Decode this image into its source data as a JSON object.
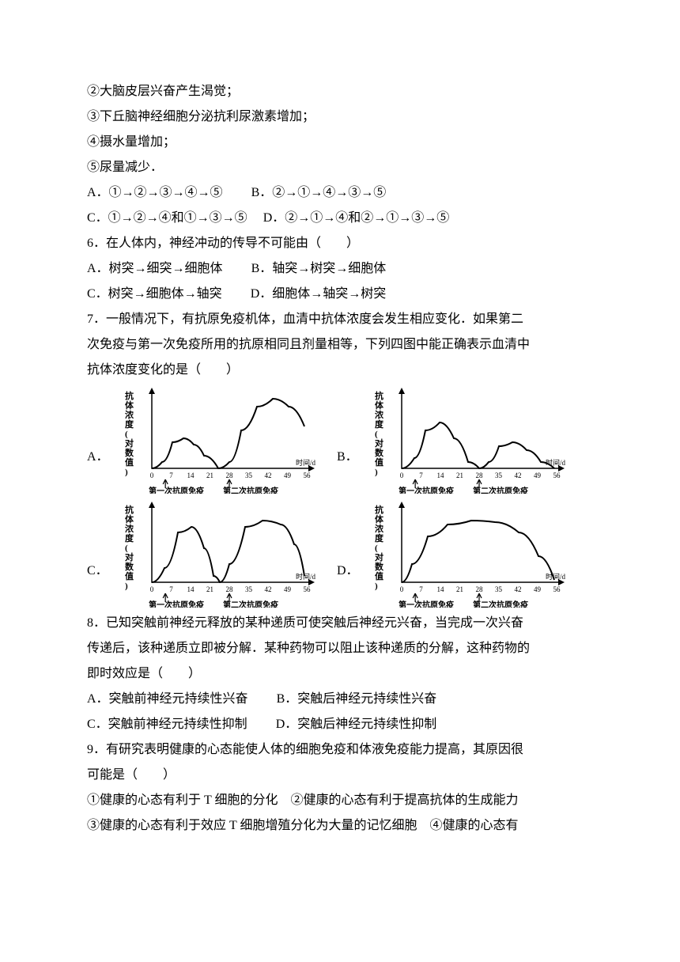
{
  "q_context": {
    "l1": "②大脑皮层兴奋产生渴觉；",
    "l2": "③下丘脑神经细胞分泌抗利尿激素增加；",
    "l3": "④摄水量增加；",
    "l4": "⑤尿量减少．",
    "optA": "A．①→②→③→④→⑤",
    "optB": "B．②→①→④→③→⑤",
    "optC": "C．①→②→④和①→③→⑤",
    "optD": "D．②→①→④和②→①→③→⑤"
  },
  "q6": {
    "stem": "6．在人体内，神经冲动的传导不可能由（　　）",
    "optA": "A．树突→细突→细胞体",
    "optB": "B．轴突→树突→细胞体",
    "optC": "C．树突→细胞体→轴突",
    "optD": "D．细胞体→轴突→树突"
  },
  "q7": {
    "stem1": "7．一般情况下，有抗原免疫机体，血清中抗体浓度会发生相应变化．如果第二",
    "stem2": "次免疫与第一次免疫所用的抗原相同且剂量相等，下列四图中能正确表示血清中",
    "stem3": "抗体浓度变化的是（　　）",
    "axis_y": "抗体浓度(对数值)",
    "axis_x": "时间/d",
    "ticks": [
      "0",
      "7",
      "14",
      "21",
      "28",
      "35",
      "42",
      "49",
      "56"
    ],
    "annot1": "第一次抗原免疫",
    "annot2": "第二次抗原免疫",
    "optA": "A．",
    "optB": "B．",
    "optC": "C．",
    "optD": "D．",
    "chart_colors": {
      "line": "#000000",
      "bg": "#ffffff"
    },
    "curves": {
      "A": [
        [
          42,
          108
        ],
        [
          55,
          100
        ],
        [
          68,
          75
        ],
        [
          82,
          70
        ],
        [
          95,
          78
        ],
        [
          108,
          92
        ],
        [
          126,
          108
        ],
        [
          140,
          100
        ],
        [
          155,
          60
        ],
        [
          175,
          30
        ],
        [
          195,
          20
        ],
        [
          215,
          30
        ],
        [
          235,
          55
        ]
      ],
      "B": [
        [
          42,
          108
        ],
        [
          58,
          95
        ],
        [
          72,
          60
        ],
        [
          90,
          50
        ],
        [
          108,
          70
        ],
        [
          126,
          100
        ],
        [
          140,
          108
        ],
        [
          152,
          100
        ],
        [
          165,
          80
        ],
        [
          182,
          75
        ],
        [
          200,
          85
        ],
        [
          218,
          100
        ],
        [
          235,
          108
        ]
      ],
      "C": [
        [
          42,
          108
        ],
        [
          58,
          90
        ],
        [
          75,
          45
        ],
        [
          92,
          38
        ],
        [
          108,
          65
        ],
        [
          120,
          100
        ],
        [
          128,
          108
        ],
        [
          140,
          85
        ],
        [
          160,
          38
        ],
        [
          182,
          30
        ],
        [
          205,
          35
        ],
        [
          222,
          60
        ],
        [
          235,
          100
        ]
      ],
      "D": [
        [
          42,
          108
        ],
        [
          55,
          85
        ],
        [
          75,
          50
        ],
        [
          100,
          35
        ],
        [
          130,
          30
        ],
        [
          160,
          32
        ],
        [
          190,
          45
        ],
        [
          215,
          75
        ],
        [
          235,
          105
        ]
      ]
    }
  },
  "q8": {
    "stem1": "8．已知突触前神经元释放的某种递质可使突触后神经元兴奋，当完成一次兴奋",
    "stem2": "传递后，该种递质立即被分解．某种药物可以阻止该种递质的分解，这种药物的",
    "stem3": "即时效应是（　　）",
    "optA": "A．突触前神经元持续性兴奋",
    "optB": "B．突触后神经元持续性兴奋",
    "optC": "C．突触前神经元持续性抑制",
    "optD": "D．突触后神经元持续性抑制"
  },
  "q9": {
    "stem1": "9．有研究表明健康的心态能使人体的细胞免疫和体液免疫能力提高，其原因很",
    "stem2": "可能是（　　）",
    "sub1": "①健康的心态有利于 T 细胞的分化　②健康的心态有利于提高抗体的生成能力",
    "sub2": "③健康的心态有利于效应 T 细胞增殖分化为大量的记忆细胞　④健康的心态有"
  }
}
